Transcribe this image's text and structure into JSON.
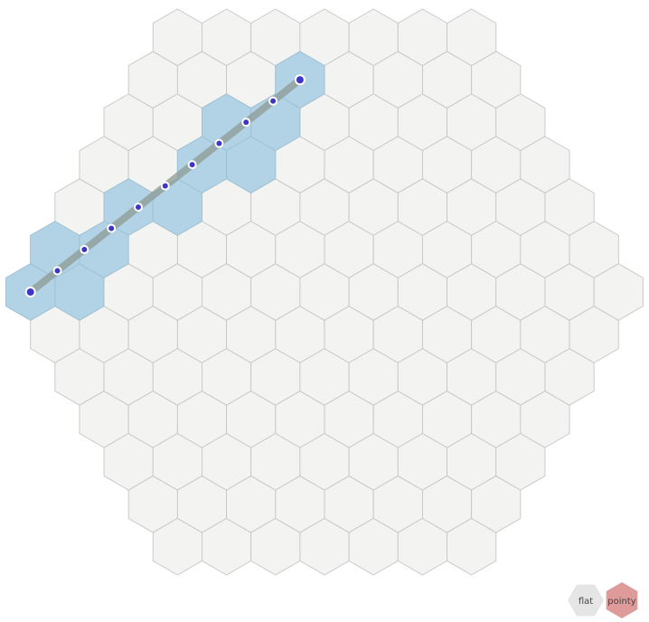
{
  "grid": {
    "orientation": "pointy",
    "radius": 6,
    "colors": {
      "cell_fill": "#f3f3f1",
      "cell_stroke": "#c6c6c6",
      "highlight_fill": "#b2d3e6",
      "highlight_stroke": "#9dc0d4",
      "line_color": "#8e9a95",
      "point_fill": "#3d37c4",
      "point_stroke": "#ffffff"
    },
    "highlighted_cells": [
      [
        -6,
        0
      ],
      [
        -5,
        0
      ],
      [
        -5,
        -1
      ],
      [
        -4,
        -1
      ],
      [
        -3,
        -2
      ],
      [
        -2,
        -2
      ],
      [
        -1,
        -3
      ],
      [
        0,
        -3
      ],
      [
        0,
        -4
      ],
      [
        1,
        -4
      ],
      [
        2,
        -5
      ]
    ],
    "line": {
      "start_cell": [
        -6,
        0
      ],
      "end_cell": [
        2,
        -5
      ],
      "sample_count": 11
    }
  },
  "orientation_toggle": {
    "flat_label": "flat",
    "pointy_label": "pointy",
    "active": "pointy",
    "flat_color": "#e5e5e5",
    "pointy_color": "#df9a9a"
  }
}
